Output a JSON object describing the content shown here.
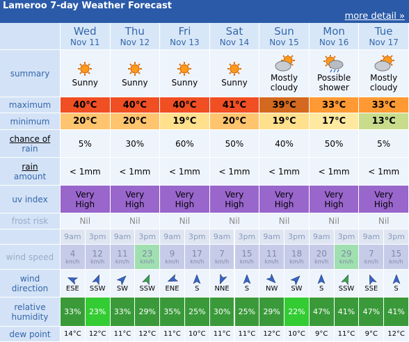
{
  "header": {
    "title": "Lameroo 7-day Weather Forecast",
    "link": "more detail »"
  },
  "labels": {
    "summary": [
      "summary"
    ],
    "maximum": [
      "maximum"
    ],
    "minimum": [
      "minimum"
    ],
    "chance": [
      "chance of",
      "rain"
    ],
    "amount": [
      "rain",
      "amount"
    ],
    "uv": [
      "uv index"
    ],
    "frost": [
      "frost risk"
    ],
    "wind_speed": [
      "wind speed"
    ],
    "wind_direction": [
      "wind",
      "direction"
    ],
    "humidity": [
      "relative",
      "humidity"
    ],
    "dew_point": [
      "dew point"
    ]
  },
  "times": [
    "9am",
    "3pm"
  ],
  "speed_unit": "km/h",
  "days": [
    {
      "day": "Wed",
      "date": "Nov 11",
      "summary": "Sunny",
      "max": "40°C",
      "max_color": "#f04e23",
      "min": "20°C",
      "min_color": "#ffc46e",
      "rain_chance": "5%",
      "rain_amount": "< 1mm",
      "uv": [
        "Very",
        "High"
      ],
      "frost": "Nil",
      "wind_speed": [
        4,
        12
      ],
      "wind_speed_colors": [
        "#c6cbe8",
        "#c6cbe8"
      ],
      "wind_dir": [
        "ESE",
        "SSW"
      ],
      "arrow_colors": [
        "#3366cc",
        "#3366cc"
      ],
      "humidity": [
        "33%",
        "23%"
      ],
      "humidity_colors": [
        "#3a9a3a",
        "#33cc33"
      ],
      "dew_point": [
        "14°C",
        "12°C"
      ]
    },
    {
      "day": "Thu",
      "date": "Nov 12",
      "summary": "Sunny",
      "max": "40°C",
      "max_color": "#f04e23",
      "min": "20°C",
      "min_color": "#ffc46e",
      "rain_chance": "30%",
      "rain_amount": "< 1mm",
      "uv": [
        "Very",
        "High"
      ],
      "frost": "Nil",
      "wind_speed": [
        11,
        23
      ],
      "wind_speed_colors": [
        "#c6cbe8",
        "#a0e0b0"
      ],
      "wind_dir": [
        "SW",
        "SSW"
      ],
      "arrow_colors": [
        "#3366cc",
        "#33aa44"
      ],
      "humidity": [
        "33%",
        "29%"
      ],
      "humidity_colors": [
        "#3a9a3a",
        "#3a9a3a"
      ],
      "dew_point": [
        "11°C",
        "12°C"
      ]
    },
    {
      "day": "Fri",
      "date": "Nov 13",
      "summary": "Sunny",
      "max": "40°C",
      "max_color": "#f04e23",
      "min": "19°C",
      "min_color": "#ffe08c",
      "rain_chance": "60%",
      "rain_amount": "< 1mm",
      "uv": [
        "Very",
        "High"
      ],
      "frost": "Nil",
      "wind_speed": [
        9,
        17
      ],
      "wind_speed_colors": [
        "#c6cbe8",
        "#c6cbe8"
      ],
      "wind_dir": [
        "ENE",
        "S"
      ],
      "arrow_colors": [
        "#3366cc",
        "#3366cc"
      ],
      "humidity": [
        "35%",
        "25%"
      ],
      "humidity_colors": [
        "#3a9a3a",
        "#3a9a3a"
      ],
      "dew_point": [
        "11°C",
        "10°C"
      ]
    },
    {
      "day": "Sat",
      "date": "Nov 14",
      "summary": "Sunny",
      "max": "41°C",
      "max_color": "#f04e23",
      "min": "20°C",
      "min_color": "#ffc46e",
      "rain_chance": "50%",
      "rain_amount": "< 1mm",
      "uv": [
        "Very",
        "High"
      ],
      "frost": "Nil",
      "wind_speed": [
        7,
        15
      ],
      "wind_speed_colors": [
        "#c6cbe8",
        "#c6cbe8"
      ],
      "wind_dir": [
        "NNE",
        "S"
      ],
      "arrow_colors": [
        "#3366cc",
        "#3366cc"
      ],
      "humidity": [
        "30%",
        "25%"
      ],
      "humidity_colors": [
        "#3a9a3a",
        "#3a9a3a"
      ],
      "dew_point": [
        "11°C",
        "11°C"
      ]
    },
    {
      "day": "Sun",
      "date": "Nov 15",
      "summary": "Mostly cloudy",
      "max": "39°C",
      "max_color": "#d2691e",
      "min": "19°C",
      "min_color": "#ffe08c",
      "rain_chance": "40%",
      "rain_amount": "< 1mm",
      "uv": [
        "Very",
        "High"
      ],
      "frost": "Nil",
      "wind_speed": [
        11,
        18
      ],
      "wind_speed_colors": [
        "#c6cbe8",
        "#c6cbe8"
      ],
      "wind_dir": [
        "NW",
        "SW"
      ],
      "arrow_colors": [
        "#3366cc",
        "#3366cc"
      ],
      "humidity": [
        "29%",
        "22%"
      ],
      "humidity_colors": [
        "#3a9a3a",
        "#33cc33"
      ],
      "dew_point": [
        "12°C",
        "10°C"
      ]
    },
    {
      "day": "Mon",
      "date": "Nov 16",
      "summary": "Possible shower",
      "max": "33°C",
      "max_color": "#ff9933",
      "min": "17°C",
      "min_color": "#ffe8a0",
      "rain_chance": "50%",
      "rain_amount": "< 1mm",
      "uv": [
        "Very",
        "High"
      ],
      "frost": "Nil",
      "wind_speed": [
        20,
        29
      ],
      "wind_speed_colors": [
        "#c6cbe8",
        "#a0e0b0"
      ],
      "wind_dir": [
        "S",
        "SSW"
      ],
      "arrow_colors": [
        "#3366cc",
        "#33aa44"
      ],
      "humidity": [
        "47%",
        "41%"
      ],
      "humidity_colors": [
        "#3a9a3a",
        "#3a9a3a"
      ],
      "dew_point": [
        "9°C",
        "11°C"
      ]
    },
    {
      "day": "Tue",
      "date": "Nov 17",
      "summary": "Mostly cloudy",
      "max": "33°C",
      "max_color": "#ff9933",
      "min": "13°C",
      "min_color": "#c8dc8c",
      "rain_chance": "5%",
      "rain_amount": "< 1mm",
      "uv": [
        "Very",
        "High"
      ],
      "frost": "Nil",
      "wind_speed": [
        7,
        15
      ],
      "wind_speed_colors": [
        "#c6cbe8",
        "#c6cbe8"
      ],
      "wind_dir": [
        "SSE",
        "S"
      ],
      "arrow_colors": [
        "#3366cc",
        "#3366cc"
      ],
      "humidity": [
        "47%",
        "41%"
      ],
      "humidity_colors": [
        "#3a9a3a",
        "#3a9a3a"
      ],
      "dew_point": [
        "9°C",
        "12°C"
      ]
    }
  ]
}
